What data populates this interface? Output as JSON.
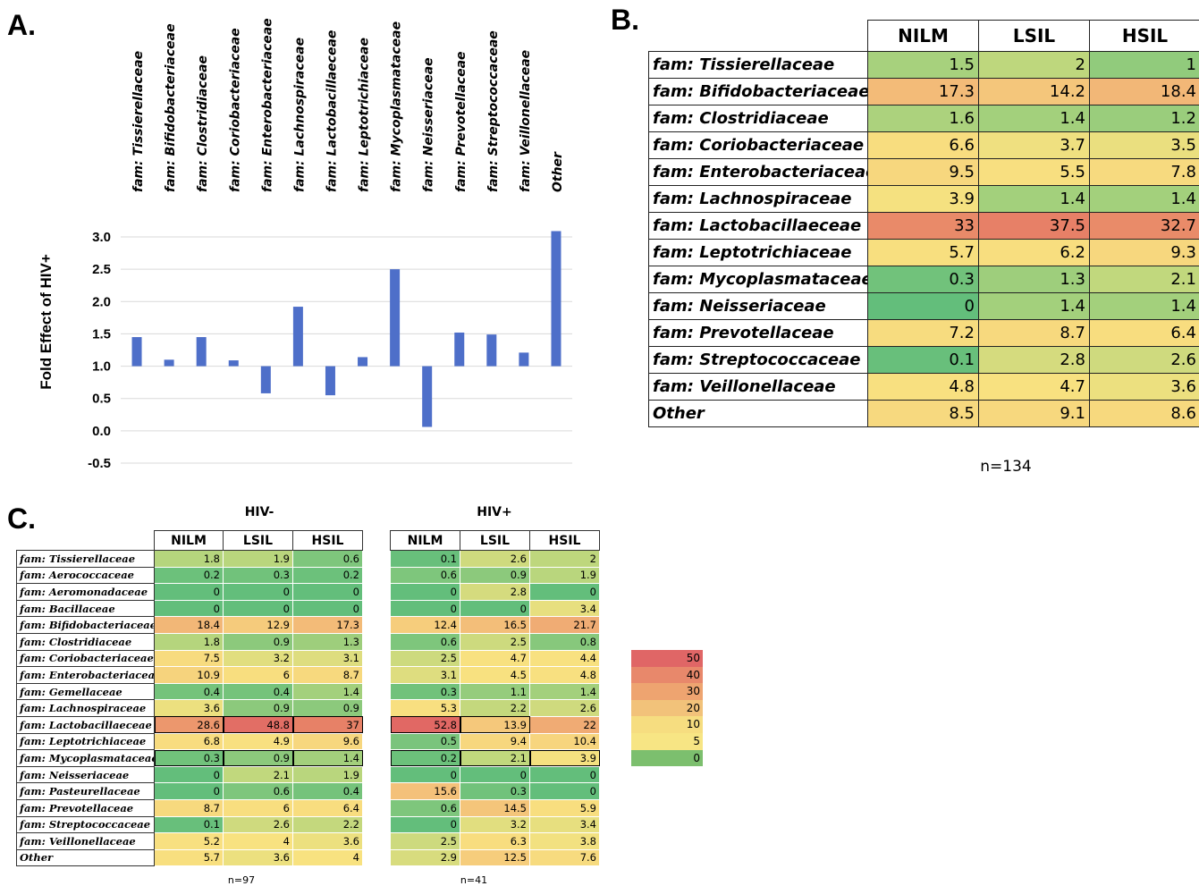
{
  "labels": {
    "a": "A.",
    "b": "B.",
    "c": "C."
  },
  "chart_data": {
    "type": "bar",
    "ylabel": "Fold Effect of HIV+",
    "xlabel": "",
    "title": "",
    "ylim": [
      -0.5,
      3.0
    ],
    "yticks": [
      "3.0",
      "2.5",
      "2.0",
      "1.5",
      "1.0",
      "0.5",
      "0.0",
      "-0.5"
    ],
    "baseline": 1.0,
    "grid": "horizontal",
    "categories": [
      "fam: Tissierellaceae",
      "fam: Bifidobacteriaceae",
      "fam: Clostridiaceae",
      "fam: Coriobacteriaceae",
      "fam: Enterobacteriaceae",
      "fam: Lachnospiraceae",
      "fam: Lactobacillaeceae",
      "fam: Leptotrichiaceae",
      "fam:  Mycoplasmataceae",
      "fam: Neisseriaceae",
      "fam: Prevotellaceae",
      "fam: Streptococcaceae",
      "fam: Veillonellaceae",
      "Other"
    ],
    "values": [
      1.45,
      1.1,
      1.45,
      1.09,
      0.58,
      1.92,
      0.55,
      1.14,
      2.5,
      0.06,
      1.52,
      1.49,
      1.21,
      3.09
    ],
    "bar_color": "#4e6fc9"
  },
  "table_b": {
    "headers": [
      "NILM",
      "LSIL",
      "HSIL"
    ],
    "caption": "n=134",
    "rows": [
      {
        "label": "fam: Tissierellaceae",
        "values": [
          "1.5",
          "2",
          "1"
        ]
      },
      {
        "label": "fam: Bifidobacteriaceae",
        "values": [
          "17.3",
          "14.2",
          "18.4"
        ]
      },
      {
        "label": "fam: Clostridiaceae",
        "values": [
          "1.6",
          "1.4",
          "1.2"
        ]
      },
      {
        "label": "fam: Coriobacteriaceae",
        "values": [
          "6.6",
          "3.7",
          "3.5"
        ]
      },
      {
        "label": "fam: Enterobacteriaceae",
        "values": [
          "9.5",
          "5.5",
          "7.8"
        ]
      },
      {
        "label": "fam: Lachnospiraceae",
        "values": [
          "3.9",
          "1.4",
          "1.4"
        ]
      },
      {
        "label": "fam: Lactobacillaeceae",
        "values": [
          "33",
          "37.5",
          "32.7"
        ]
      },
      {
        "label": "fam: Leptotrichiaceae",
        "values": [
          "5.7",
          "6.2",
          "9.3"
        ]
      },
      {
        "label": "fam:  Mycoplasmataceae",
        "values": [
          "0.3",
          "1.3",
          "2.1"
        ]
      },
      {
        "label": "fam: Neisseriaceae",
        "values": [
          "0",
          "1.4",
          "1.4"
        ]
      },
      {
        "label": "fam: Prevotellaceae",
        "values": [
          "7.2",
          "8.7",
          "6.4"
        ]
      },
      {
        "label": "fam: Streptococcaceae",
        "values": [
          "0.1",
          "2.8",
          "2.6"
        ]
      },
      {
        "label": "fam: Veillonellaceae",
        "values": [
          "4.8",
          "4.7",
          "3.6"
        ]
      },
      {
        "label": "Other",
        "values": [
          "8.5",
          "9.1",
          "8.6"
        ]
      }
    ]
  },
  "table_c": {
    "hiv_neg_title": "HIV-",
    "hiv_pos_title": "HIV+",
    "headers": [
      "NILM",
      "LSIL",
      "HSIL"
    ],
    "hiv_neg_caption": "n=97",
    "hiv_pos_caption": "n=41",
    "labels": [
      "fam: Tissierellaceae",
      "fam: Aerococcaceae",
      "fam: Aeromonadaceae",
      "fam: Bacillaceae",
      "fam: Bifidobacteriaceae",
      "fam: Clostridiaceae",
      "fam: Coriobacteriaceae",
      "fam: Enterobacteriaceae",
      "fam: Gemellaceae",
      "fam: Lachnospiraceae",
      "fam: Lactobacillaeceae",
      "fam: Leptotrichiaceae",
      "fam:  Mycoplasmataceae",
      "fam: Neisseriaceae",
      "fam: Pasteurellaceae",
      "fam: Prevotellaceae",
      "fam: Streptococcaceae",
      "fam: Veillonellaceae",
      "Other"
    ],
    "hiv_neg": [
      [
        "1.8",
        "1.9",
        "0.6"
      ],
      [
        "0.2",
        "0.3",
        "0.2"
      ],
      [
        "0",
        "0",
        "0"
      ],
      [
        "0",
        "0",
        "0"
      ],
      [
        "18.4",
        "12.9",
        "17.3"
      ],
      [
        "1.8",
        "0.9",
        "1.3"
      ],
      [
        "7.5",
        "3.2",
        "3.1"
      ],
      [
        "10.9",
        "6",
        "8.7"
      ],
      [
        "0.4",
        "0.4",
        "1.4"
      ],
      [
        "3.6",
        "0.9",
        "0.9"
      ],
      [
        "28.6",
        "48.8",
        "37"
      ],
      [
        "6.8",
        "4.9",
        "9.6"
      ],
      [
        "0.3",
        "0.9",
        "1.4"
      ],
      [
        "0",
        "2.1",
        "1.9"
      ],
      [
        "0",
        "0.6",
        "0.4"
      ],
      [
        "8.7",
        "6",
        "6.4"
      ],
      [
        "0.1",
        "2.6",
        "2.2"
      ],
      [
        "5.2",
        "4",
        "3.6"
      ],
      [
        "5.7",
        "3.6",
        "4"
      ]
    ],
    "hiv_pos": [
      [
        "0.1",
        "2.6",
        "2"
      ],
      [
        "0.6",
        "0.9",
        "1.9"
      ],
      [
        "0",
        "2.8",
        "0"
      ],
      [
        "0",
        "0",
        "3.4"
      ],
      [
        "12.4",
        "16.5",
        "21.7"
      ],
      [
        "0.6",
        "2.5",
        "0.8"
      ],
      [
        "2.5",
        "4.7",
        "4.4"
      ],
      [
        "3.1",
        "4.5",
        "4.8"
      ],
      [
        "0.3",
        "1.1",
        "1.4"
      ],
      [
        "5.3",
        "2.2",
        "2.6"
      ],
      [
        "52.8",
        "13.9",
        "22"
      ],
      [
        "0.5",
        "9.4",
        "10.4"
      ],
      [
        "0.2",
        "2.1",
        "3.9"
      ],
      [
        "0",
        "0",
        "0"
      ],
      [
        "15.6",
        "0.3",
        "0"
      ],
      [
        "0.6",
        "14.5",
        "5.9"
      ],
      [
        "0",
        "3.2",
        "3.4"
      ],
      [
        "2.5",
        "6.3",
        "3.8"
      ],
      [
        "2.9",
        "12.5",
        "7.6"
      ]
    ],
    "hiv_neg_boxed": [
      [
        10,
        0
      ],
      [
        10,
        1
      ],
      [
        10,
        2
      ],
      [
        12,
        0
      ],
      [
        12,
        1
      ],
      [
        12,
        2
      ]
    ],
    "hiv_pos_boxed": [
      [
        10,
        0
      ],
      [
        10,
        1
      ],
      [
        12,
        0
      ],
      [
        12,
        1
      ],
      [
        12,
        2
      ]
    ]
  },
  "legend": {
    "values": [
      "50",
      "40",
      "30",
      "20",
      "10",
      "5",
      "0"
    ],
    "colors": [
      "#e06666",
      "#e8886b",
      "#eea470",
      "#f2c27a",
      "#f6dd80",
      "#f7e584",
      "#7cbf6e"
    ]
  }
}
